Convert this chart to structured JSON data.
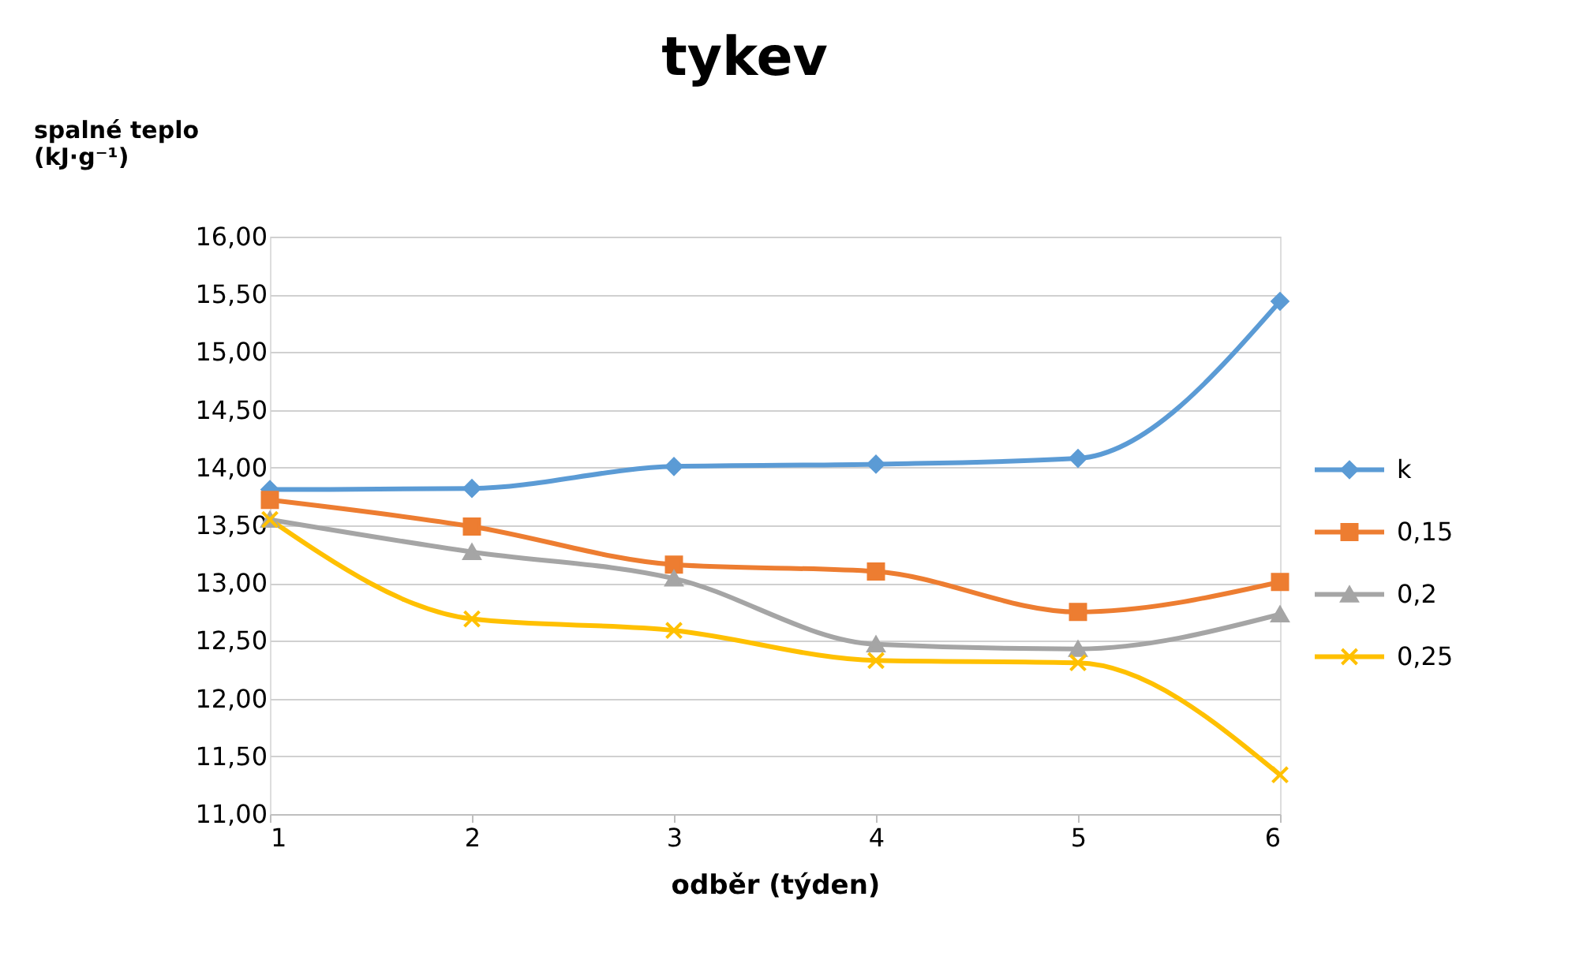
{
  "chart_data": {
    "type": "line",
    "title": "tykev",
    "xlabel": "odběr (týden)",
    "ylabel": "spalné teplo (kJ·g⁻¹)",
    "x": [
      1,
      2,
      3,
      4,
      5,
      6
    ],
    "series": [
      {
        "name": "k",
        "color": "#5b9bd5",
        "marker": "diamond",
        "values": [
          13.81,
          13.82,
          14.01,
          14.03,
          14.08,
          15.44
        ]
      },
      {
        "name": "0,15",
        "color": "#ed7d31",
        "marker": "square",
        "values": [
          13.72,
          13.49,
          13.16,
          13.1,
          12.75,
          13.01
        ]
      },
      {
        "name": "0,2",
        "color": "#a5a5a5",
        "marker": "triangle",
        "values": [
          13.55,
          13.27,
          13.04,
          12.47,
          12.43,
          12.73
        ]
      },
      {
        "name": "0,25",
        "color": "#ffc000",
        "marker": "cross",
        "values": [
          13.55,
          12.69,
          12.59,
          12.33,
          12.31,
          11.34
        ]
      }
    ],
    "xlim": [
      1,
      6
    ],
    "xticks": [
      1,
      2,
      3,
      4,
      5,
      6
    ],
    "ylim": [
      11,
      16
    ],
    "yticks": [
      {
        "value": 11,
        "label": "11,00"
      },
      {
        "value": 11.5,
        "label": "11,50"
      },
      {
        "value": 12,
        "label": "12,00"
      },
      {
        "value": 12.5,
        "label": "12,50"
      },
      {
        "value": 13,
        "label": "13,00"
      },
      {
        "value": 13.5,
        "label": "13,50"
      },
      {
        "value": 14,
        "label": "14,00"
      },
      {
        "value": 14.5,
        "label": "14,50"
      },
      {
        "value": 15,
        "label": "15,00"
      },
      {
        "value": 15.5,
        "label": "15,50"
      },
      {
        "value": 16,
        "label": "16,00"
      }
    ],
    "grid": "y",
    "legend": "right",
    "line_style": "solid"
  }
}
